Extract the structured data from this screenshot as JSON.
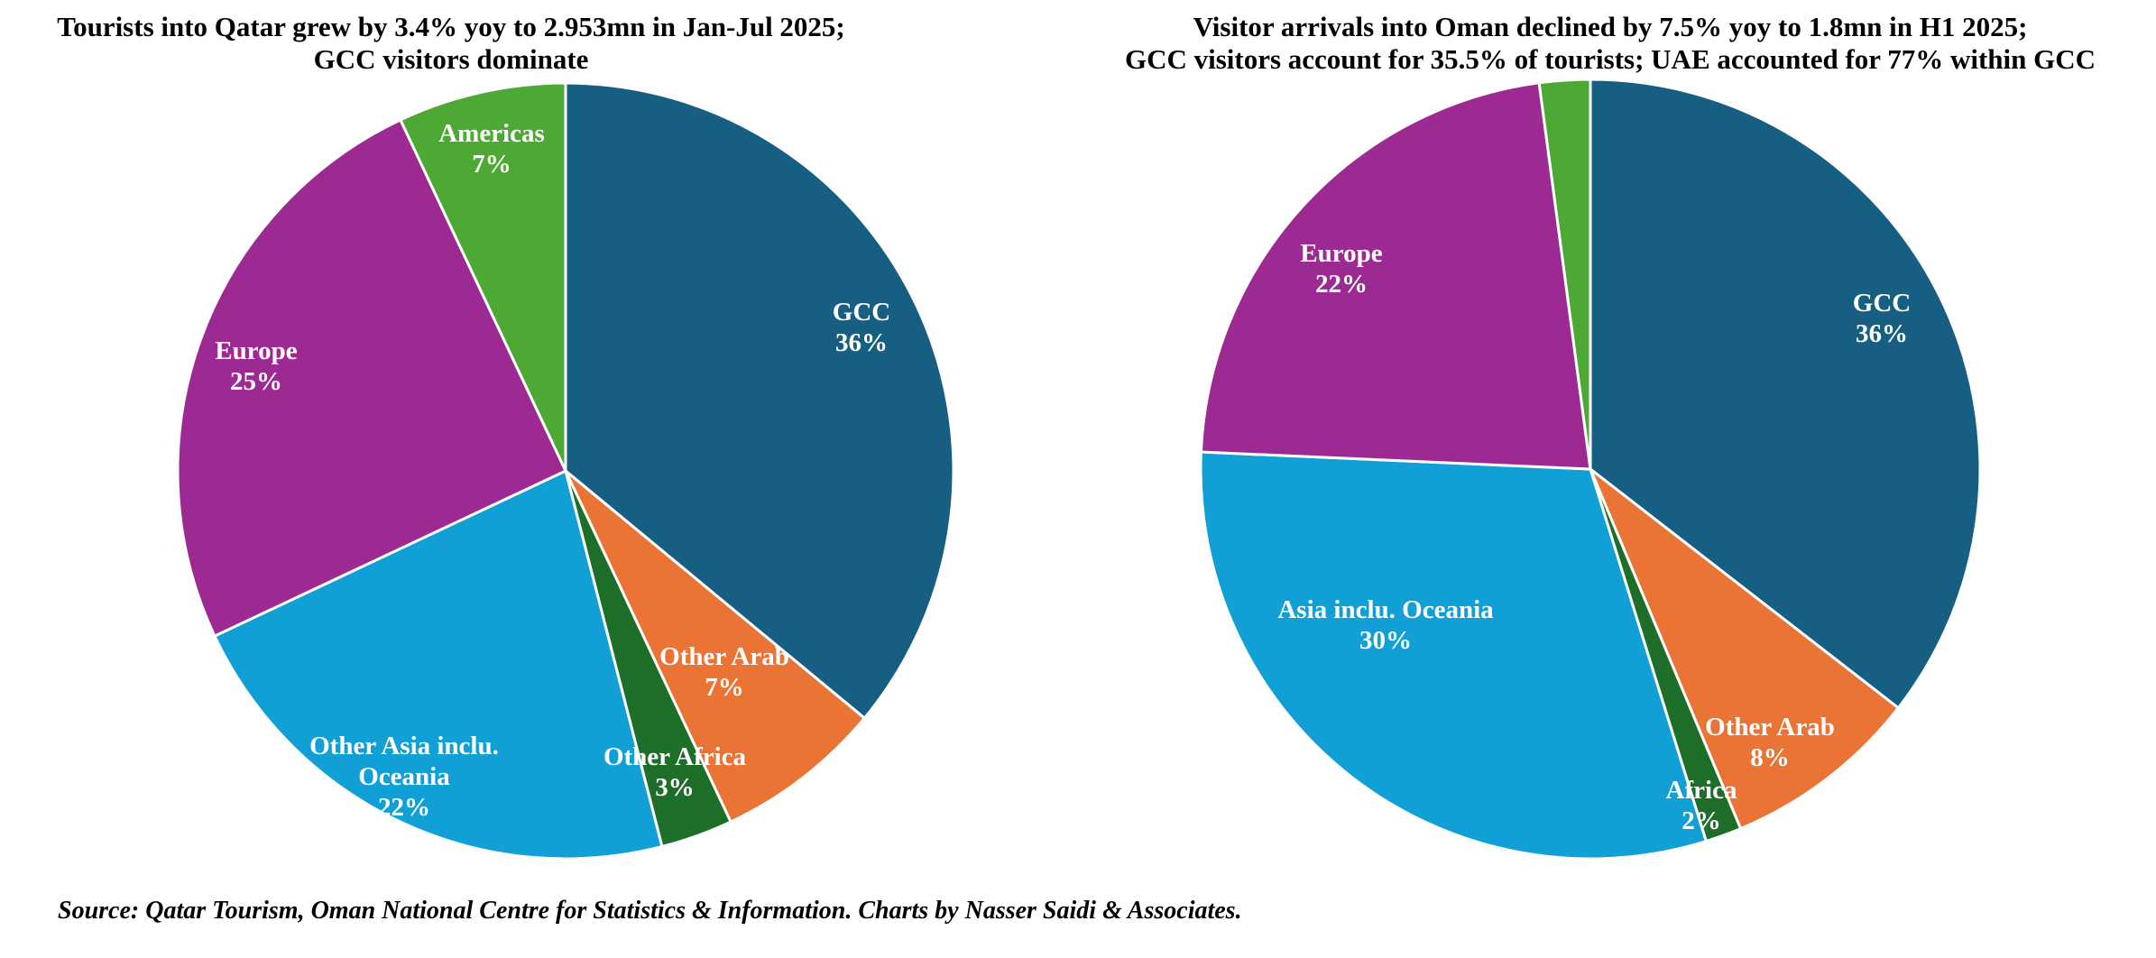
{
  "source_note": "Source: Qatar Tourism, Oman National Centre for Statistics & Information. Charts by Nasser Saidi & Associates.",
  "chart_data": [
    {
      "type": "pie",
      "title": [
        "Tourists into Qatar grew by 3.4% yoy to 2.953mn in Jan-Jul 2025;",
        "GCC visitors dominate"
      ],
      "start_angle_deg": 0,
      "direction": "clockwise",
      "slices": [
        {
          "name": [
            "GCC"
          ],
          "value": 36,
          "label": "36%",
          "color": "#165E82"
        },
        {
          "name": [
            "Other Arab"
          ],
          "value": 7,
          "label": "7%",
          "color": "#EA7436"
        },
        {
          "name": [
            "Other Africa"
          ],
          "value": 3,
          "label": "3%",
          "color": "#1C6E28"
        },
        {
          "name": [
            "Other Asia inclu.",
            "Oceania"
          ],
          "value": 22,
          "label": "22%",
          "color": "#11A0D6"
        },
        {
          "name": [
            "Europe"
          ],
          "value": 25,
          "label": "25%",
          "color": "#9C2A92"
        },
        {
          "name": [
            "Americas"
          ],
          "value": 7,
          "label": "7%",
          "color": "#4DA834"
        }
      ],
      "legend": "none"
    },
    {
      "type": "pie",
      "title": [
        "Visitor arrivals into Oman declined by 7.5% yoy to 1.8mn in H1 2025;",
        "GCC visitors account for 35.5% of tourists; UAE accounted for 77% within GCC"
      ],
      "start_angle_deg": 0,
      "direction": "clockwise",
      "slices": [
        {
          "name": [
            "GCC"
          ],
          "value": 35.5,
          "label": "36%",
          "color": "#165E82"
        },
        {
          "name": [
            "Other Arab"
          ],
          "value": 8.2,
          "label": "8%",
          "color": "#EA7436"
        },
        {
          "name": [
            "Africa"
          ],
          "value": 1.5,
          "label": "2%",
          "color": "#1C6E28"
        },
        {
          "name": [
            "Asia inclu. Oceania"
          ],
          "value": 30.5,
          "label": "30%",
          "color": "#11A0D6"
        },
        {
          "name": [
            "Europe"
          ],
          "value": 22.2,
          "label": "22%",
          "color": "#9C2A92"
        },
        {
          "name": [],
          "value": 2.1,
          "label": "",
          "color": "#4DA834"
        }
      ],
      "legend": "none"
    }
  ]
}
